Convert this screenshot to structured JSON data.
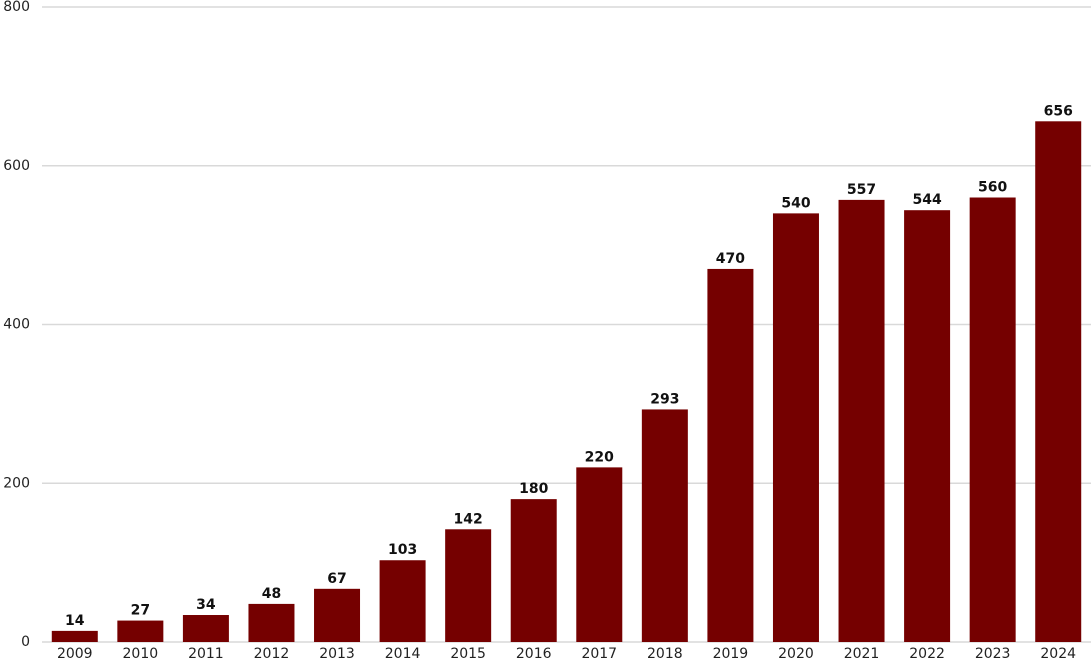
{
  "chart_data": {
    "type": "bar",
    "categories": [
      "2009",
      "2010",
      "2011",
      "2012",
      "2013",
      "2014",
      "2015",
      "2016",
      "2017",
      "2018",
      "2019",
      "2020",
      "2021",
      "2022",
      "2023",
      "2024"
    ],
    "values": [
      14,
      27,
      34,
      48,
      67,
      103,
      142,
      180,
      220,
      293,
      470,
      540,
      557,
      544,
      560,
      656
    ],
    "color": "#750000",
    "ylim": [
      0,
      800
    ],
    "yticks": [
      0,
      200,
      400,
      600,
      800
    ],
    "grid": true
  }
}
